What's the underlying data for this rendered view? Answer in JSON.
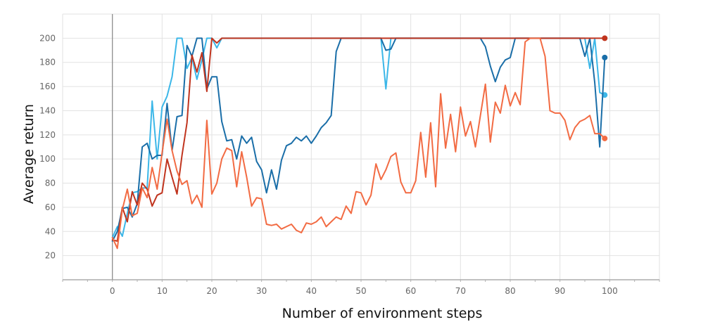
{
  "chart_data": {
    "type": "line",
    "title": "",
    "xlabel": "Number of environment steps",
    "ylabel": "Average return",
    "xlim": [
      -10,
      110
    ],
    "ylim": [
      0,
      220
    ],
    "xticks": [
      0,
      10,
      20,
      30,
      40,
      50,
      60,
      70,
      80,
      90,
      100
    ],
    "yticks": [
      20,
      40,
      60,
      80,
      100,
      120,
      140,
      160,
      180,
      200
    ],
    "grid": true,
    "legend": "none",
    "series": [
      {
        "color": "#3cb7e8",
        "end_marker": true,
        "values": [
          35,
          44,
          36,
          55,
          72,
          73,
          76,
          76,
          148,
          100,
          143,
          152,
          168,
          200,
          200,
          175,
          184,
          166,
          182,
          200,
          200,
          192,
          200,
          200,
          200,
          200,
          200,
          200,
          200,
          200,
          200,
          200,
          200,
          200,
          200,
          200,
          200,
          200,
          200,
          200,
          200,
          200,
          200,
          200,
          200,
          200,
          200,
          200,
          200,
          200,
          200,
          200,
          200,
          200,
          200,
          158,
          200,
          200,
          200,
          200,
          200,
          200,
          200,
          200,
          200,
          200,
          200,
          200,
          200,
          200,
          200,
          200,
          200,
          200,
          200,
          200,
          200,
          200,
          200,
          200,
          200,
          200,
          200,
          200,
          200,
          200,
          200,
          200,
          200,
          200,
          200,
          200,
          200,
          200,
          200,
          200,
          175,
          200,
          155,
          153
        ]
      },
      {
        "color": "#1a6ea8",
        "end_marker": true,
        "values": [
          32,
          40,
          59,
          60,
          52,
          63,
          110,
          113,
          100,
          103,
          103,
          146,
          107,
          135,
          136,
          194,
          185,
          200,
          200,
          158,
          168,
          168,
          131,
          115,
          116,
          100,
          119,
          113,
          118,
          98,
          91,
          72,
          91,
          75,
          99,
          111,
          113,
          118,
          115,
          119,
          113,
          119,
          126,
          130,
          136,
          189,
          200,
          200,
          200,
          200,
          200,
          200,
          200,
          200,
          200,
          190,
          191,
          200,
          200,
          200,
          200,
          200,
          200,
          200,
          200,
          200,
          200,
          200,
          200,
          200,
          200,
          200,
          200,
          200,
          200,
          193,
          177,
          164,
          176,
          182,
          184,
          200,
          200,
          200,
          200,
          200,
          200,
          200,
          200,
          200,
          200,
          200,
          200,
          200,
          200,
          185,
          200,
          163,
          110,
          184
        ]
      },
      {
        "color": "#c0341e",
        "end_marker": true,
        "values": [
          33,
          32,
          60,
          48,
          73,
          62,
          80,
          75,
          61,
          70,
          72,
          100,
          85,
          71,
          103,
          130,
          186,
          172,
          188,
          156,
          200,
          196,
          200,
          200,
          200,
          200,
          200,
          200,
          200,
          200,
          200,
          200,
          200,
          200,
          200,
          200,
          200,
          200,
          200,
          200,
          200,
          200,
          200,
          200,
          200,
          200,
          200,
          200,
          200,
          200,
          200,
          200,
          200,
          200,
          200,
          200,
          200,
          200,
          200,
          200,
          200,
          200,
          200,
          200,
          200,
          200,
          200,
          200,
          200,
          200,
          200,
          200,
          200,
          200,
          200,
          200,
          200,
          200,
          200,
          200,
          200,
          200,
          200,
          200,
          200,
          200,
          200,
          200,
          200,
          200,
          200,
          200,
          200,
          200,
          200,
          200,
          200,
          200,
          200,
          200
        ]
      },
      {
        "color": "#f26b43",
        "end_marker": true,
        "values": [
          35,
          26,
          58,
          75,
          53,
          55,
          76,
          68,
          93,
          75,
          105,
          133,
          107,
          90,
          79,
          82,
          63,
          70,
          60,
          132,
          71,
          80,
          100,
          109,
          107,
          77,
          106,
          85,
          61,
          68,
          67,
          46,
          45,
          46,
          42,
          44,
          46,
          41,
          39,
          47,
          46,
          48,
          52,
          44,
          48,
          52,
          50,
          61,
          55,
          73,
          72,
          62,
          70,
          96,
          83,
          91,
          102,
          105,
          81,
          72,
          72,
          82,
          122,
          85,
          130,
          77,
          154,
          109,
          137,
          106,
          143,
          119,
          131,
          110,
          136,
          162,
          114,
          147,
          138,
          161,
          144,
          155,
          145,
          197,
          200,
          200,
          200,
          185,
          140,
          138,
          138,
          132,
          116,
          126,
          131,
          133,
          136,
          121,
          121,
          117
        ]
      }
    ]
  }
}
